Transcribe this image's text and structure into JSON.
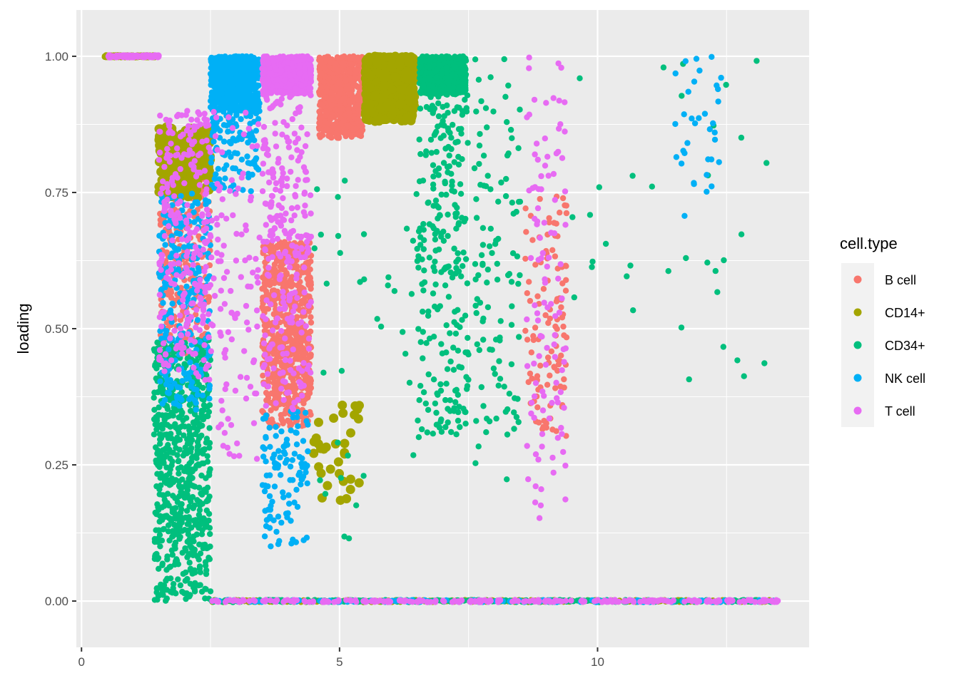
{
  "chart_data": {
    "type": "scatter",
    "title": "",
    "xlabel": "",
    "ylabel": "loading",
    "xlim": [
      -0.1,
      14.1
    ],
    "ylim": [
      -0.085,
      1.085
    ],
    "x_ticks": [
      0,
      5,
      10
    ],
    "x_tick_labels": [
      "0",
      "5",
      "10"
    ],
    "y_ticks": [
      0,
      0.25,
      0.5,
      0.75,
      1
    ],
    "y_tick_labels": [
      "0.00",
      "0.25",
      "0.50",
      "0.75",
      "1.00"
    ],
    "grid": true,
    "legend": {
      "title": "cell.type",
      "position": "right",
      "entries": [
        "B cell",
        "CD14+",
        "CD34+",
        "NK cell",
        "T cell"
      ]
    },
    "colors": {
      "B cell": "#F8766D",
      "CD14+": "#A3A500",
      "CD34+": "#00BF7D",
      "NK cell": "#00B0F6",
      "T cell": "#E76BF3",
      "panel_background": "#EBEBEB",
      "grid_line": "#FFFFFF"
    },
    "series": [
      {
        "name": "B cell",
        "clusters": [
          {
            "x": [
              3.5,
              4.45
            ],
            "y": [
              0.32,
              0.66
            ],
            "density": "high"
          },
          {
            "x": [
              4.6,
              5.45
            ],
            "y": [
              0.85,
              1.0
            ],
            "density": "high"
          },
          {
            "x": [
              1.5,
              2.5
            ],
            "y": [
              0.45,
              0.8
            ],
            "density": "medium"
          },
          {
            "x": [
              8.6,
              9.4
            ],
            "y": [
              0.3,
              0.75
            ],
            "density": "low"
          }
        ]
      },
      {
        "name": "CD14+",
        "clusters": [
          {
            "x": [
              5.5,
              6.45
            ],
            "y": [
              0.88,
              1.0
            ],
            "density": "high"
          },
          {
            "x": [
              1.5,
              2.5
            ],
            "y": [
              0.74,
              0.87
            ],
            "density": "medium"
          },
          {
            "x": [
              0.45,
              1.45
            ],
            "y": [
              1.0,
              1.0
            ],
            "density": "medium"
          },
          {
            "x": [
              4.5,
              5.4
            ],
            "y": [
              0.18,
              0.36
            ],
            "density": "sparse"
          },
          {
            "x": [
              2.5,
              13.5
            ],
            "y": [
              0.0,
              0.0
            ],
            "density": "medium"
          }
        ]
      },
      {
        "name": "CD34+",
        "clusters": [
          {
            "x": [
              6.55,
              7.45
            ],
            "y": [
              0.93,
              1.0
            ],
            "density": "high"
          },
          {
            "x": [
              6.5,
              7.5
            ],
            "y": [
              0.3,
              0.95
            ],
            "density": "medium"
          },
          {
            "x": [
              1.4,
              2.5
            ],
            "y": [
              0.0,
              0.48
            ],
            "density": "high"
          },
          {
            "x": [
              7.6,
              8.5
            ],
            "y": [
              0.2,
              1.0
            ],
            "density": "low"
          },
          {
            "x": [
              4.5,
              6.5
            ],
            "y": [
              0.1,
              0.8
            ],
            "density": "sparse"
          },
          {
            "x": [
              9.5,
              13.4
            ],
            "y": [
              0.4,
              1.0
            ],
            "density": "sparse"
          },
          {
            "x": [
              2.5,
              13.5
            ],
            "y": [
              0.0,
              0.0
            ],
            "density": "medium"
          }
        ]
      },
      {
        "name": "NK cell",
        "clusters": [
          {
            "x": [
              2.5,
              3.45
            ],
            "y": [
              0.9,
              1.0
            ],
            "density": "high"
          },
          {
            "x": [
              2.5,
              3.45
            ],
            "y": [
              0.75,
              0.9
            ],
            "density": "low"
          },
          {
            "x": [
              1.5,
              2.5
            ],
            "y": [
              0.35,
              0.75
            ],
            "density": "medium"
          },
          {
            "x": [
              3.5,
              4.4
            ],
            "y": [
              0.1,
              0.35
            ],
            "density": "low"
          },
          {
            "x": [
              11.5,
              12.5
            ],
            "y": [
              0.69,
              1.0
            ],
            "density": "sparse"
          },
          {
            "x": [
              2.5,
              13.5
            ],
            "y": [
              0.0,
              0.0
            ],
            "density": "low"
          }
        ]
      },
      {
        "name": "T cell",
        "clusters": [
          {
            "x": [
              3.5,
              4.45
            ],
            "y": [
              0.93,
              1.0
            ],
            "density": "high"
          },
          {
            "x": [
              3.5,
              4.45
            ],
            "y": [
              0.35,
              0.93
            ],
            "density": "medium"
          },
          {
            "x": [
              2.5,
              3.45
            ],
            "y": [
              0.25,
              0.9
            ],
            "density": "low"
          },
          {
            "x": [
              1.5,
              2.5
            ],
            "y": [
              0.4,
              0.9
            ],
            "density": "medium"
          },
          {
            "x": [
              8.6,
              9.4
            ],
            "y": [
              0.15,
              1.0
            ],
            "density": "low"
          },
          {
            "x": [
              0.5,
              1.5
            ],
            "y": [
              1.0,
              1.0
            ],
            "density": "low"
          },
          {
            "x": [
              2.5,
              13.5
            ],
            "y": [
              0.0,
              0.0
            ],
            "density": "medium"
          }
        ]
      }
    ]
  }
}
